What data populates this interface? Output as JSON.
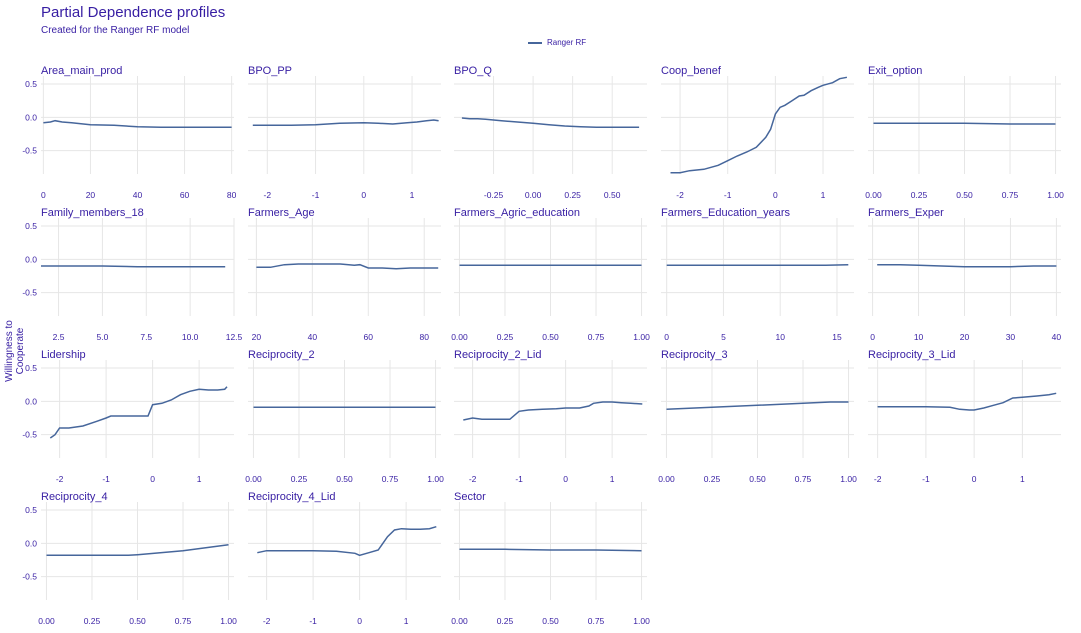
{
  "title": "Partial Dependence profiles",
  "subtitle": "Created for the Ranger RF model",
  "legend_label": "Ranger RF",
  "ylabel": "Willingness to Cooperate",
  "colors": {
    "line": "#46669b",
    "text": "#371ea3",
    "grid": "#e6e6e6"
  },
  "chart_data": {
    "type": "line",
    "layout": "facet-grid",
    "ylim": [
      -0.85,
      0.62
    ],
    "yticks": [
      0.5,
      0.0,
      -0.5
    ],
    "ytick_labels": [
      "0.5",
      "0.0",
      "-0.5"
    ],
    "legend_placement": "top-center",
    "grid": true,
    "panels": [
      {
        "title": "Area_main_prod",
        "xlim": [
          -1,
          81
        ],
        "xticks": [
          0,
          20,
          40,
          60,
          80
        ],
        "xtick_labels": [
          "0",
          "20",
          "40",
          "60",
          "80"
        ],
        "series": [
          {
            "name": "Ranger RF",
            "x": [
              0,
              3,
              5,
              8,
              12,
              20,
              30,
              40,
              50,
              60,
              70,
              80
            ],
            "y": [
              -0.08,
              -0.07,
              -0.05,
              -0.07,
              -0.08,
              -0.11,
              -0.12,
              -0.14,
              -0.15,
              -0.15,
              -0.15,
              -0.15
            ]
          }
        ]
      },
      {
        "title": "BPO_PP",
        "xlim": [
          -2.4,
          1.6
        ],
        "xticks": [
          -2,
          -1,
          0,
          1
        ],
        "xtick_labels": [
          "-2",
          "-1",
          "0",
          "1"
        ],
        "series": [
          {
            "name": "Ranger RF",
            "x": [
              -2.3,
              -2,
              -1.5,
              -1,
              -0.5,
              0,
              0.3,
              0.6,
              0.9,
              1.1,
              1.3,
              1.45,
              1.55
            ],
            "y": [
              -0.12,
              -0.12,
              -0.12,
              -0.11,
              -0.09,
              -0.08,
              -0.09,
              -0.1,
              -0.08,
              -0.07,
              -0.05,
              -0.04,
              -0.05
            ]
          }
        ]
      },
      {
        "title": "BPO_Q",
        "xlim": [
          -0.5,
          0.72
        ],
        "xticks": [
          -0.25,
          0,
          0.25,
          0.5
        ],
        "xtick_labels": [
          "-0.25",
          "0.00",
          "0.25",
          "0.50"
        ],
        "series": [
          {
            "name": "Ranger RF",
            "x": [
              -0.45,
              -0.4,
              -0.35,
              -0.3,
              -0.2,
              -0.1,
              0,
              0.1,
              0.2,
              0.3,
              0.4,
              0.5,
              0.6,
              0.67
            ],
            "y": [
              -0.01,
              -0.02,
              -0.02,
              -0.03,
              -0.05,
              -0.07,
              -0.09,
              -0.11,
              -0.13,
              -0.14,
              -0.15,
              -0.15,
              -0.15,
              -0.15
            ]
          }
        ]
      },
      {
        "title": "Coop_benef",
        "xlim": [
          -2.4,
          1.65
        ],
        "xticks": [
          -2,
          -1,
          0,
          1
        ],
        "xtick_labels": [
          "-2",
          "-1",
          "0",
          "1"
        ],
        "series": [
          {
            "name": "Ranger RF",
            "x": [
              -2.2,
              -2.0,
              -1.8,
              -1.5,
              -1.2,
              -1.0,
              -0.8,
              -0.6,
              -0.4,
              -0.2,
              -0.1,
              0,
              0.1,
              0.2,
              0.35,
              0.5,
              0.6,
              0.75,
              0.9,
              1.0,
              1.2,
              1.35,
              1.5
            ],
            "y": [
              -0.83,
              -0.83,
              -0.8,
              -0.78,
              -0.72,
              -0.65,
              -0.58,
              -0.52,
              -0.45,
              -0.3,
              -0.18,
              0.05,
              0.15,
              0.18,
              0.25,
              0.32,
              0.33,
              0.4,
              0.45,
              0.48,
              0.52,
              0.58,
              0.6
            ]
          }
        ]
      },
      {
        "title": "Exit_option",
        "xlim": [
          -0.03,
          1.03
        ],
        "xticks": [
          0,
          0.25,
          0.5,
          0.75,
          1
        ],
        "xtick_labels": [
          "0.00",
          "0.25",
          "0.50",
          "0.75",
          "1.00"
        ],
        "series": [
          {
            "name": "Ranger RF",
            "x": [
              0,
              0.25,
              0.5,
              0.75,
              1
            ],
            "y": [
              -0.09,
              -0.09,
              -0.09,
              -0.1,
              -0.1
            ]
          }
        ]
      },
      {
        "title": "Family_members_18",
        "xlim": [
          1.5,
          12.5
        ],
        "xticks": [
          2.5,
          5,
          7.5,
          10,
          12.5
        ],
        "xtick_labels": [
          "2.5",
          "5.0",
          "7.5",
          "10.0",
          "12.5"
        ],
        "series": [
          {
            "name": "Ranger RF",
            "x": [
              1.5,
              3,
              5,
              7,
              9,
              12
            ],
            "y": [
              -0.1,
              -0.1,
              -0.1,
              -0.11,
              -0.11,
              -0.11
            ]
          }
        ]
      },
      {
        "title": "Farmers_Age",
        "xlim": [
          17,
          86
        ],
        "xticks": [
          20,
          40,
          60,
          80
        ],
        "xtick_labels": [
          "20",
          "40",
          "60",
          "80"
        ],
        "series": [
          {
            "name": "Ranger RF",
            "x": [
              20,
              25,
              30,
              35,
              40,
              50,
              55,
              57,
              60,
              65,
              70,
              75,
              80,
              85
            ],
            "y": [
              -0.12,
              -0.12,
              -0.08,
              -0.07,
              -0.07,
              -0.07,
              -0.09,
              -0.08,
              -0.13,
              -0.13,
              -0.14,
              -0.13,
              -0.13,
              -0.13
            ]
          }
        ]
      },
      {
        "title": "Farmers_Agric_education",
        "xlim": [
          -0.03,
          1.03
        ],
        "xticks": [
          0,
          0.25,
          0.5,
          0.75,
          1
        ],
        "xtick_labels": [
          "0.00",
          "0.25",
          "0.50",
          "0.75",
          "1.00"
        ],
        "series": [
          {
            "name": "Ranger RF",
            "x": [
              0,
              0.5,
              1
            ],
            "y": [
              -0.09,
              -0.09,
              -0.09
            ]
          }
        ]
      },
      {
        "title": "Farmers_Education_years",
        "xlim": [
          -0.5,
          16.5
        ],
        "xticks": [
          0,
          5,
          10,
          15
        ],
        "xtick_labels": [
          "0",
          "5",
          "10",
          "15"
        ],
        "series": [
          {
            "name": "Ranger RF",
            "x": [
              0,
              5,
              10,
              14,
              16
            ],
            "y": [
              -0.09,
              -0.09,
              -0.09,
              -0.09,
              -0.08
            ]
          }
        ]
      },
      {
        "title": "Farmers_Exper",
        "xlim": [
          -1,
          41
        ],
        "xticks": [
          0,
          10,
          20,
          30,
          40
        ],
        "xtick_labels": [
          "0",
          "10",
          "20",
          "30",
          "40"
        ],
        "series": [
          {
            "name": "Ranger RF",
            "x": [
              1,
              3,
              6,
              10,
              15,
              20,
              25,
              30,
              35,
              40
            ],
            "y": [
              -0.08,
              -0.08,
              -0.08,
              -0.09,
              -0.1,
              -0.11,
              -0.11,
              -0.11,
              -0.1,
              -0.1
            ]
          }
        ]
      },
      {
        "title": "Lidership",
        "xlim": [
          -2.4,
          1.75
        ],
        "xticks": [
          -2,
          -1,
          0,
          1
        ],
        "xtick_labels": [
          "-2",
          "-1",
          "0",
          "1"
        ],
        "series": [
          {
            "name": "Ranger RF",
            "x": [
              -2.2,
              -2.1,
              -2.0,
              -1.8,
              -1.5,
              -1.2,
              -1.0,
              -0.9,
              -0.5,
              -0.1,
              0,
              0.2,
              0.4,
              0.6,
              0.8,
              1.0,
              1.2,
              1.4,
              1.55,
              1.6
            ],
            "y": [
              -0.55,
              -0.5,
              -0.4,
              -0.4,
              -0.37,
              -0.3,
              -0.25,
              -0.22,
              -0.22,
              -0.22,
              -0.05,
              -0.03,
              0.02,
              0.1,
              0.15,
              0.18,
              0.17,
              0.17,
              0.18,
              0.22
            ]
          }
        ]
      },
      {
        "title": "Reciprocity_2",
        "xlim": [
          -0.03,
          1.03
        ],
        "xticks": [
          0,
          0.25,
          0.5,
          0.75,
          1
        ],
        "xtick_labels": [
          "0.00",
          "0.25",
          "0.50",
          "0.75",
          "1.00"
        ],
        "series": [
          {
            "name": "Ranger RF",
            "x": [
              0,
              0.5,
              1
            ],
            "y": [
              -0.09,
              -0.09,
              -0.09
            ]
          }
        ]
      },
      {
        "title": "Reciprocity_2_Lid",
        "xlim": [
          -2.4,
          1.75
        ],
        "xticks": [
          -2,
          -1,
          0,
          1
        ],
        "xtick_labels": [
          "-2",
          "-1",
          "0",
          "1"
        ],
        "series": [
          {
            "name": "Ranger RF",
            "x": [
              -2.2,
              -2.0,
              -1.8,
              -1.5,
              -1.2,
              -1.0,
              -0.8,
              -0.5,
              -0.2,
              0,
              0.3,
              0.5,
              0.6,
              0.8,
              1.0,
              1.2,
              1.4,
              1.65
            ],
            "y": [
              -0.28,
              -0.25,
              -0.27,
              -0.27,
              -0.27,
              -0.15,
              -0.13,
              -0.12,
              -0.11,
              -0.1,
              -0.1,
              -0.07,
              -0.03,
              -0.01,
              -0.01,
              -0.02,
              -0.03,
              -0.04
            ]
          }
        ]
      },
      {
        "title": "Reciprocity_3",
        "xlim": [
          -0.03,
          1.03
        ],
        "xticks": [
          0,
          0.25,
          0.5,
          0.75,
          1
        ],
        "xtick_labels": [
          "0.00",
          "0.25",
          "0.50",
          "0.75",
          "1.00"
        ],
        "series": [
          {
            "name": "Ranger RF",
            "x": [
              0,
              0.25,
              0.5,
              0.75,
              0.9,
              1
            ],
            "y": [
              -0.12,
              -0.09,
              -0.06,
              -0.03,
              -0.01,
              -0.01
            ]
          }
        ]
      },
      {
        "title": "Reciprocity_3_Lid",
        "xlim": [
          -2.2,
          1.8
        ],
        "xticks": [
          -2,
          -1,
          0,
          1
        ],
        "xtick_labels": [
          "-2",
          "-1",
          "0",
          "1"
        ],
        "series": [
          {
            "name": "Ranger RF",
            "x": [
              -2.0,
              -1.5,
              -1.0,
              -0.5,
              -0.3,
              -0.1,
              0,
              0.2,
              0.4,
              0.6,
              0.8,
              1.0,
              1.3,
              1.55,
              1.7
            ],
            "y": [
              -0.08,
              -0.08,
              -0.08,
              -0.09,
              -0.12,
              -0.13,
              -0.13,
              -0.1,
              -0.06,
              -0.02,
              0.05,
              0.06,
              0.08,
              0.1,
              0.12
            ]
          }
        ]
      },
      {
        "title": "Reciprocity_4",
        "xlim": [
          -0.03,
          1.03
        ],
        "xticks": [
          0,
          0.25,
          0.5,
          0.75,
          1
        ],
        "xtick_labels": [
          "0.00",
          "0.25",
          "0.50",
          "0.75",
          "1.00"
        ],
        "series": [
          {
            "name": "Ranger RF",
            "x": [
              0,
              0.25,
              0.45,
              0.5,
              0.75,
              1
            ],
            "y": [
              -0.18,
              -0.18,
              -0.18,
              -0.17,
              -0.11,
              -0.02
            ]
          }
        ]
      },
      {
        "title": "Reciprocity_4_Lid",
        "xlim": [
          -2.4,
          1.75
        ],
        "xticks": [
          -2,
          -1,
          0,
          1
        ],
        "xtick_labels": [
          "-2",
          "-1",
          "0",
          "1"
        ],
        "series": [
          {
            "name": "Ranger RF",
            "x": [
              -2.2,
              -2.0,
              -1.5,
              -1.0,
              -0.5,
              -0.1,
              0,
              0.2,
              0.4,
              0.5,
              0.6,
              0.75,
              0.9,
              1.1,
              1.3,
              1.5,
              1.65
            ],
            "y": [
              -0.14,
              -0.11,
              -0.11,
              -0.11,
              -0.12,
              -0.15,
              -0.18,
              -0.14,
              -0.1,
              0.0,
              0.1,
              0.2,
              0.22,
              0.21,
              0.21,
              0.22,
              0.25
            ]
          }
        ]
      },
      {
        "title": "Sector",
        "xlim": [
          -0.03,
          1.03
        ],
        "xticks": [
          0,
          0.25,
          0.5,
          0.75,
          1
        ],
        "xtick_labels": [
          "0.00",
          "0.25",
          "0.50",
          "0.75",
          "1.00"
        ],
        "series": [
          {
            "name": "Ranger RF",
            "x": [
              0,
              0.25,
              0.5,
              0.75,
              1
            ],
            "y": [
              -0.09,
              -0.09,
              -0.1,
              -0.1,
              -0.11
            ]
          }
        ]
      }
    ]
  }
}
